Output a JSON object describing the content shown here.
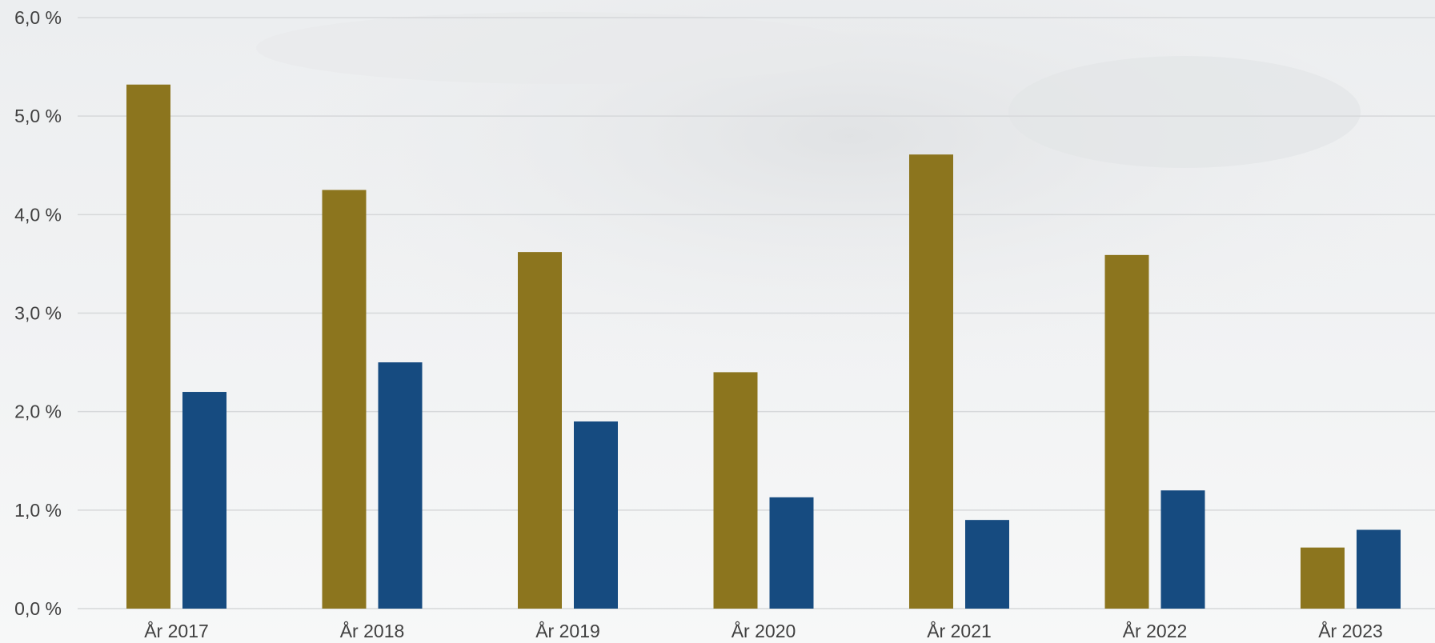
{
  "chart_data": {
    "type": "bar",
    "title": "",
    "xlabel": "",
    "ylabel": "",
    "ylim": [
      0,
      6
    ],
    "yticks": [
      "0,0 %",
      "1,0 %",
      "2,0 %",
      "3,0 %",
      "4,0 %",
      "5,0 %",
      "6,0 %"
    ],
    "ytick_values": [
      0,
      1,
      2,
      3,
      4,
      5,
      6
    ],
    "grid": true,
    "legend": "none",
    "categories": [
      "År 2017",
      "År 2018",
      "År 2019",
      "År 2020",
      "År 2021",
      "År 2022",
      "År 2023"
    ],
    "series": [
      {
        "color": "#8c751e",
        "values": [
          5.32,
          4.25,
          3.62,
          2.4,
          4.61,
          3.59,
          0.62
        ]
      },
      {
        "color": "#164b80",
        "values": [
          2.2,
          2.5,
          1.9,
          1.13,
          0.9,
          1.2,
          0.8
        ]
      }
    ]
  },
  "colors": {
    "background": "#f2f3f4",
    "gridline": "#d6d8da",
    "axis_text": "#404040"
  }
}
